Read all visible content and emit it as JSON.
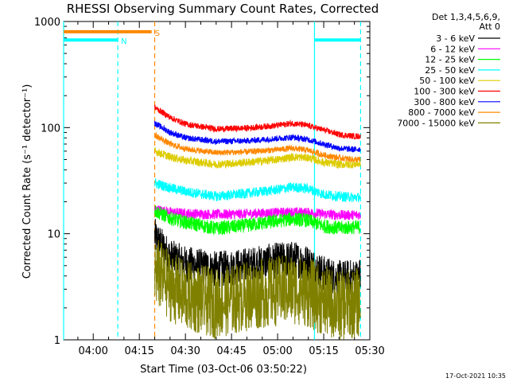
{
  "chart_data": {
    "type": "line",
    "title": "RHESSI Observing Summary Count Rates, Corrected",
    "xlabel": "Start Time (03-Oct-06 03:50:22)",
    "ylabel": "Corrected Count Rate (s⁻¹ detector⁻¹)",
    "yscale": "log",
    "ylim": [
      1,
      1000
    ],
    "xlim": [
      "03:50:22",
      "05:30:00"
    ],
    "x_ticks": [
      "04:00",
      "04:15",
      "04:30",
      "04:45",
      "05:00",
      "05:15",
      "05:30"
    ],
    "y_ticks": [
      "1",
      "10",
      "100",
      "1000"
    ],
    "legend_header": [
      "Det 1,3,4,5,6,9,",
      "Att 0"
    ],
    "legend_position": "right",
    "footer": "17-Oct-2021 10:35",
    "data_start": "04:20",
    "series": [
      {
        "name": "3 - 6 keV",
        "color": "#000000",
        "x": [
          "04:20",
          "04:25",
          "04:30",
          "04:40",
          "04:50",
          "05:00",
          "05:05",
          "05:10",
          "05:15",
          "05:20",
          "05:25",
          "05:27"
        ],
        "values": [
          9.5,
          6.0,
          5.2,
          4.6,
          5.0,
          5.6,
          5.8,
          5.3,
          4.2,
          3.8,
          3.9,
          4.0
        ],
        "noise": 0.18
      },
      {
        "name": "6 - 12 keV",
        "color": "#ff00ff",
        "x": [
          "04:20",
          "04:25",
          "04:30",
          "04:40",
          "04:50",
          "05:00",
          "05:05",
          "05:10",
          "05:15",
          "05:20",
          "05:25",
          "05:27"
        ],
        "values": [
          17,
          16,
          15.5,
          15.2,
          15.4,
          15.8,
          16,
          15.8,
          15.3,
          15.0,
          15.0,
          15.1
        ],
        "noise": 0.05
      },
      {
        "name": "12 - 25 keV",
        "color": "#00ff00",
        "x": [
          "04:20",
          "04:25",
          "04:30",
          "04:40",
          "04:50",
          "05:00",
          "05:05",
          "05:10",
          "05:15",
          "05:20",
          "05:25",
          "05:27"
        ],
        "values": [
          16.5,
          14,
          12.8,
          11.2,
          12.0,
          13.2,
          13.8,
          13.3,
          11.8,
          11.3,
          11.5,
          11.6
        ],
        "noise": 0.07
      },
      {
        "name": "25 - 50 keV",
        "color": "#00ffff",
        "x": [
          "04:20",
          "04:25",
          "04:30",
          "04:40",
          "04:50",
          "05:00",
          "05:05",
          "05:10",
          "05:15",
          "05:20",
          "05:25",
          "05:27"
        ],
        "values": [
          30,
          27,
          25,
          22.5,
          24,
          26,
          27.5,
          26.5,
          23.5,
          22.5,
          22.0,
          22.0
        ],
        "noise": 0.05
      },
      {
        "name": "50 - 100 keV",
        "color": "#ddcc00",
        "x": [
          "04:20",
          "04:25",
          "04:30",
          "04:40",
          "04:50",
          "05:00",
          "05:05",
          "05:10",
          "05:15",
          "05:20",
          "05:25",
          "05:27"
        ],
        "values": [
          60,
          53,
          49,
          45,
          47,
          50,
          53,
          52,
          47,
          45,
          45,
          46
        ],
        "noise": 0.04
      },
      {
        "name": "100 - 300 keV",
        "color": "#ff0000",
        "x": [
          "04:20",
          "04:25",
          "04:30",
          "04:40",
          "04:50",
          "05:00",
          "05:05",
          "05:10",
          "05:15",
          "05:20",
          "05:25",
          "05:27"
        ],
        "values": [
          155,
          125,
          108,
          97,
          99,
          105,
          110,
          104,
          95,
          86,
          83,
          83
        ],
        "noise": 0.03
      },
      {
        "name": "300 - 800 keV",
        "color": "#0000ff",
        "x": [
          "04:20",
          "04:25",
          "04:30",
          "04:40",
          "04:50",
          "05:00",
          "05:05",
          "05:10",
          "05:15",
          "05:20",
          "05:25",
          "05:27"
        ],
        "values": [
          110,
          90,
          80,
          74,
          75,
          79,
          81,
          77,
          70,
          64,
          62,
          63
        ],
        "noise": 0.03
      },
      {
        "name": "800 - 7000 keV",
        "color": "#ff8800",
        "x": [
          "04:20",
          "04:25",
          "04:30",
          "04:40",
          "04:50",
          "05:00",
          "05:05",
          "05:10",
          "05:15",
          "05:20",
          "05:25",
          "05:27"
        ],
        "values": [
          85,
          70,
          63,
          58,
          59,
          62,
          64,
          61,
          55,
          52,
          50,
          50
        ],
        "noise": 0.03
      },
      {
        "name": "7000 - 15000 keV",
        "color": "#808000",
        "x": [
          "04:20",
          "04:25",
          "04:30",
          "04:40",
          "04:50",
          "05:00",
          "05:05",
          "05:10",
          "05:15",
          "05:20",
          "05:25",
          "05:27"
        ],
        "values": [
          4.5,
          3.2,
          2.6,
          2.2,
          2.6,
          2.9,
          3.0,
          2.8,
          2.3,
          2.1,
          2.2,
          2.3
        ],
        "noise": 0.35
      }
    ],
    "flag_bars": [
      {
        "label": "S",
        "color": "#ff8800",
        "start": "03:50:22",
        "end": "04:19",
        "value": 800
      },
      {
        "label": "N",
        "color": "#00ffff",
        "start": "03:50:22",
        "end": "04:08",
        "value": 670
      },
      {
        "label": "",
        "color": "#00ffff",
        "start": "05:12",
        "end": "05:27",
        "value": 670
      }
    ],
    "vertical_lines": [
      {
        "time": "03:50:22",
        "color": "#00ffff",
        "style": "solid"
      },
      {
        "time": "04:08",
        "color": "#00ffff",
        "style": "dashed"
      },
      {
        "time": "04:20",
        "color": "#ff8800",
        "style": "dashed"
      },
      {
        "time": "05:12",
        "color": "#00ffff",
        "style": "solid"
      },
      {
        "time": "05:27",
        "color": "#00ffff",
        "style": "dashed"
      }
    ]
  }
}
